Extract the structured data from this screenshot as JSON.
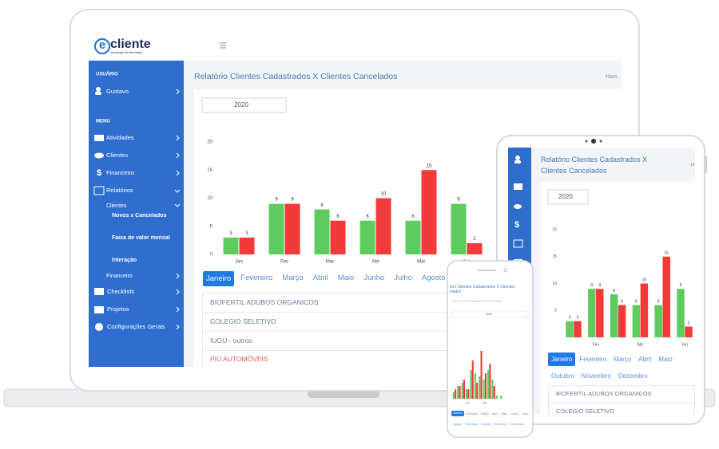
{
  "laptop": {
    "logo": {
      "mark": "e",
      "name": "cliente",
      "tagline": "tecnologia de informação"
    },
    "sidebar": {
      "user_heading": "USUÁRIO",
      "user": "Gustavo",
      "menu_heading": "MENU",
      "items": [
        "Atividades",
        "Clientes",
        "Financeiro",
        "Relatórios"
      ],
      "submenu_title": "Clientes",
      "subitems": [
        "Novos x Cancelados",
        "Faixa de valor mensal",
        "Interação"
      ],
      "submenu_financeiro": "Financeiro",
      "items_after": [
        "Checklists",
        "Projetos",
        "Configurações Gerais"
      ]
    },
    "title": "Relatório Clientes Cadastrados X Clientes Cancelados",
    "breadcrumb": "Hom",
    "year": "2020",
    "tabs": [
      "Janeiro",
      "Fevereiro",
      "Março",
      "Abril",
      "Maio",
      "Junho",
      "Julho",
      "Agosto"
    ],
    "clients": [
      "BIOFERTIL ADUBOS ORGANICOS",
      "COLEGIO SELETIVO",
      "IUGU - outros",
      "PIU AUTOMÓVEIS"
    ]
  },
  "tablet": {
    "title": "Relatório Clientes Cadastrados X Clientes Cancelados",
    "breadcrumb": "H",
    "year": "2020",
    "tabs": [
      "Janeiro",
      "Fevereiro",
      "Março",
      "Abril",
      "Maio",
      "Outubro",
      "Novembro",
      "Dezembro"
    ],
    "clients": [
      "BIOFERTIL ADUBOS ORGANICOS",
      "COLEGIO SELETIVO"
    ]
  },
  "phone": {
    "title": "Relatório Clientes Cadastrados X Clientes Cancelados",
    "subtitle": "Relatório Clientes Cadastrados X Clientes Cancelados",
    "year": "2020",
    "tabs": [
      "Janeiro",
      "Fevereiro",
      "Março",
      "Abril",
      "Maio",
      "Junho",
      "Julho",
      "Agosto",
      "Setembro",
      "Outubro",
      "Novembro",
      "Dezembro"
    ]
  },
  "chart_data": [
    {
      "type": "bar",
      "categories": [
        "Jan",
        "Fev",
        "Mar",
        "Abr",
        "Mai",
        "Jun"
      ],
      "series": [
        {
          "color": "#5ecb5e",
          "values": [
            3,
            9,
            8,
            6,
            6,
            9
          ]
        },
        {
          "color": "#f23a3a",
          "values": [
            3,
            9,
            6,
            10,
            15,
            2
          ]
        }
      ],
      "ylim": [
        0,
        20
      ],
      "yticks": [
        0,
        5,
        10,
        15,
        20
      ],
      "data_labels": true,
      "grid": false
    },
    {
      "type": "bar",
      "categories": [
        null,
        "Fev",
        null,
        "Abr",
        null,
        "Jun"
      ],
      "series": [
        {
          "color": "#5ecb5e",
          "values": [
            3,
            9,
            8,
            6,
            6,
            9
          ]
        },
        {
          "color": "#f23a3a",
          "values": [
            3,
            9,
            6,
            10,
            15,
            2
          ]
        }
      ],
      "ylim": [
        0,
        20
      ],
      "yticks": [
        5,
        10,
        15,
        20
      ],
      "data_labels": true,
      "grid": false
    },
    {
      "type": "bar",
      "categories": [
        null,
        null,
        null,
        "Jan",
        null,
        null,
        null,
        "Abr",
        null,
        null,
        null,
        null
      ],
      "series": [
        {
          "color": "#5ecb5e",
          "values": [
            2,
            4,
            5,
            3,
            9,
            8,
            7,
            6,
            9,
            6,
            1,
            1
          ]
        },
        {
          "color": "#f23a3a",
          "values": [
            3,
            4,
            6,
            3,
            12,
            5,
            15,
            8,
            11,
            4,
            0,
            0
          ]
        }
      ],
      "ylim": [
        0,
        20
      ],
      "data_labels": false,
      "grid": false
    }
  ]
}
